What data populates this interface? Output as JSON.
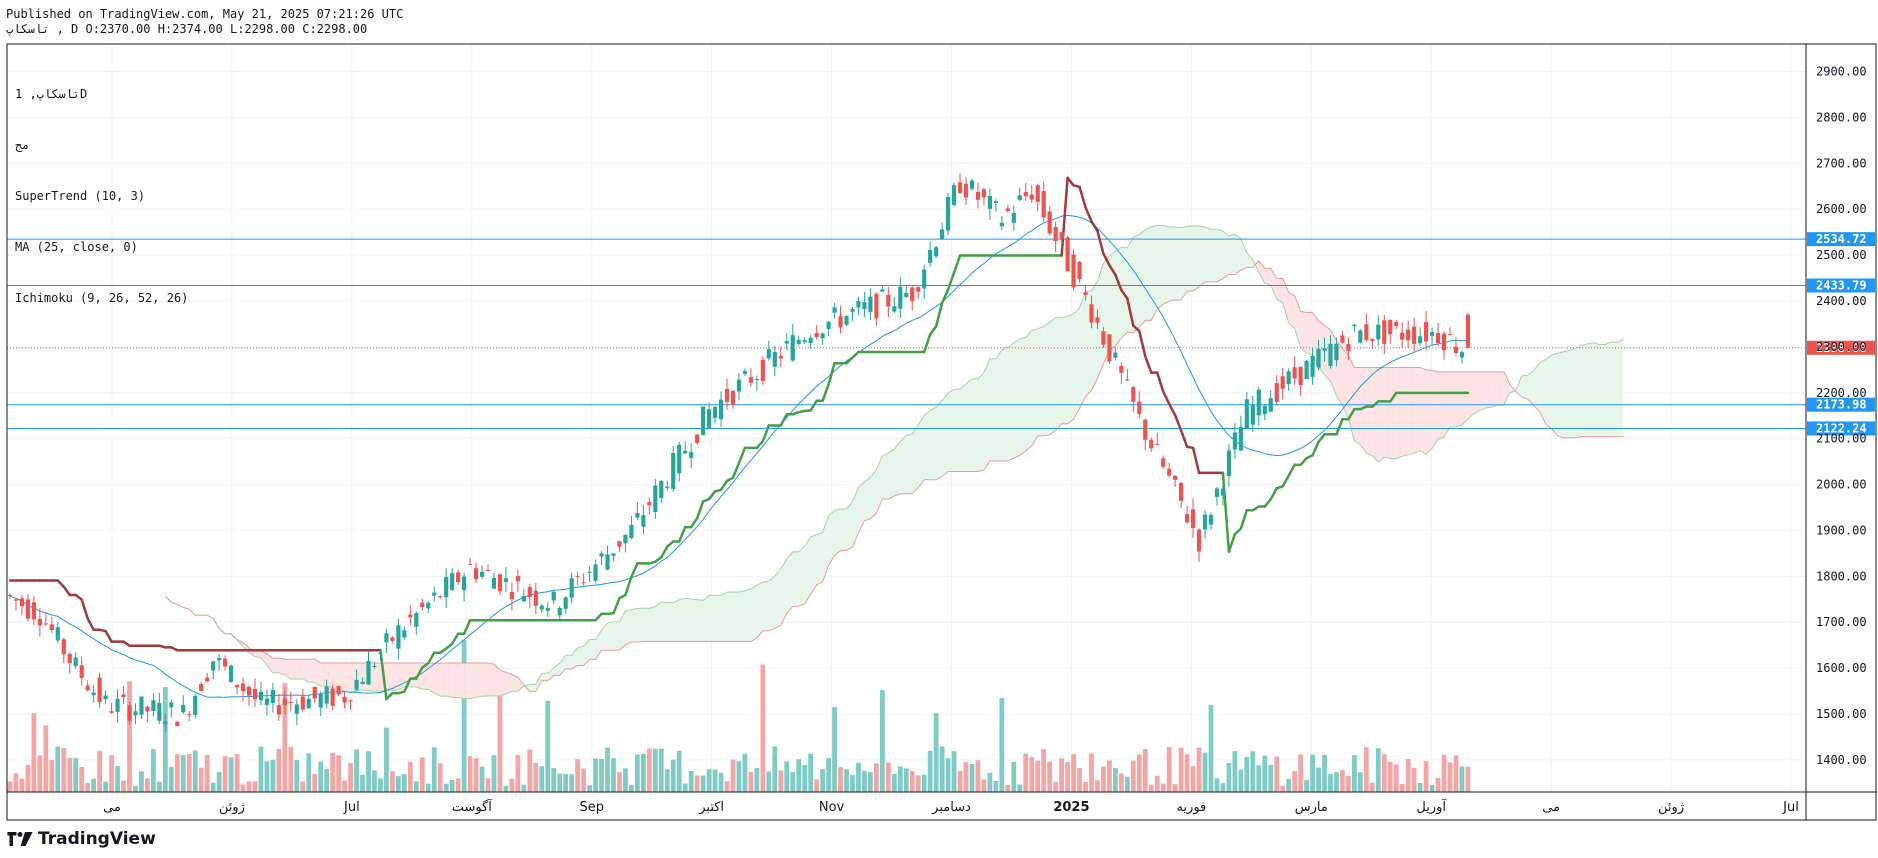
{
  "header": {
    "published": "Published on TradingView.com, May 21, 2025 07:21:26 UTC",
    "ohlc": "تاسکاپ , D O:2370.00 H:2374.00 L:2298.00 C:2298.00"
  },
  "legend": {
    "symbol": "تاسکاپ, 1D",
    "exchange": "مج",
    "supertrend": "SuperTrend (10, 3)",
    "ma": "MA (25, close, 0)",
    "ichimoku": "Ichimoku (9, 26, 52, 26)"
  },
  "brand": {
    "name": "TradingView",
    "icon": "tradingview-logo-icon"
  },
  "colors": {
    "up": "#26a69a",
    "down": "#ef5350",
    "supertrend_up": "#43a047",
    "supertrend_down": "#a13a3a",
    "ma": "#2196f3",
    "kumo_bull": "#e8f5e9",
    "kumo_bear": "#fde4e4",
    "hline": "#2196f3",
    "price": "#ef5350"
  },
  "chart_data": {
    "type": "candlestick",
    "ylim": [
      1330,
      2960
    ],
    "yticks": [
      1400,
      1500,
      1600,
      1700,
      1800,
      1900,
      2000,
      2100,
      2200,
      2300,
      2400,
      2500,
      2600,
      2700,
      2800,
      2900
    ],
    "xticks": [
      "می",
      "ژوئن",
      "Jul",
      "آگوست",
      "Sep",
      "اکتبر",
      "Nov",
      "دسامبر",
      "2025",
      "فوریه",
      "مارس",
      "آوریل",
      "می",
      "ژوئن",
      "Jul"
    ],
    "horizontal_lines": [
      {
        "value": 2534.72,
        "label": "2534.72"
      },
      {
        "value": 2433.79,
        "label": "2433.79"
      },
      {
        "value": 2173.98,
        "label": "2173.98"
      },
      {
        "value": 2122.24,
        "label": "2122.24"
      }
    ],
    "last_price": {
      "value": 2298.0,
      "label": "2298.00"
    },
    "ohlc_days": 245,
    "trend_anchors": [
      [
        0,
        1760
      ],
      [
        6,
        1720
      ],
      [
        12,
        1600
      ],
      [
        17,
        1520
      ],
      [
        30,
        1500
      ],
      [
        35,
        1620
      ],
      [
        43,
        1520
      ],
      [
        57,
        1540
      ],
      [
        66,
        1680
      ],
      [
        78,
        1820
      ],
      [
        92,
        1740
      ],
      [
        105,
        1900
      ],
      [
        118,
        2160
      ],
      [
        135,
        2340
      ],
      [
        152,
        2420
      ],
      [
        160,
        2660
      ],
      [
        167,
        2580
      ],
      [
        172,
        2640
      ],
      [
        182,
        2380
      ],
      [
        190,
        2140
      ],
      [
        200,
        1880
      ],
      [
        208,
        2160
      ],
      [
        226,
        2330
      ],
      [
        240,
        2330
      ],
      [
        244,
        2298
      ]
    ],
    "last_candle": {
      "open": 2370.0,
      "high": 2374.0,
      "low": 2298.0,
      "close": 2298.0
    },
    "cloud_extra_days": 26
  }
}
